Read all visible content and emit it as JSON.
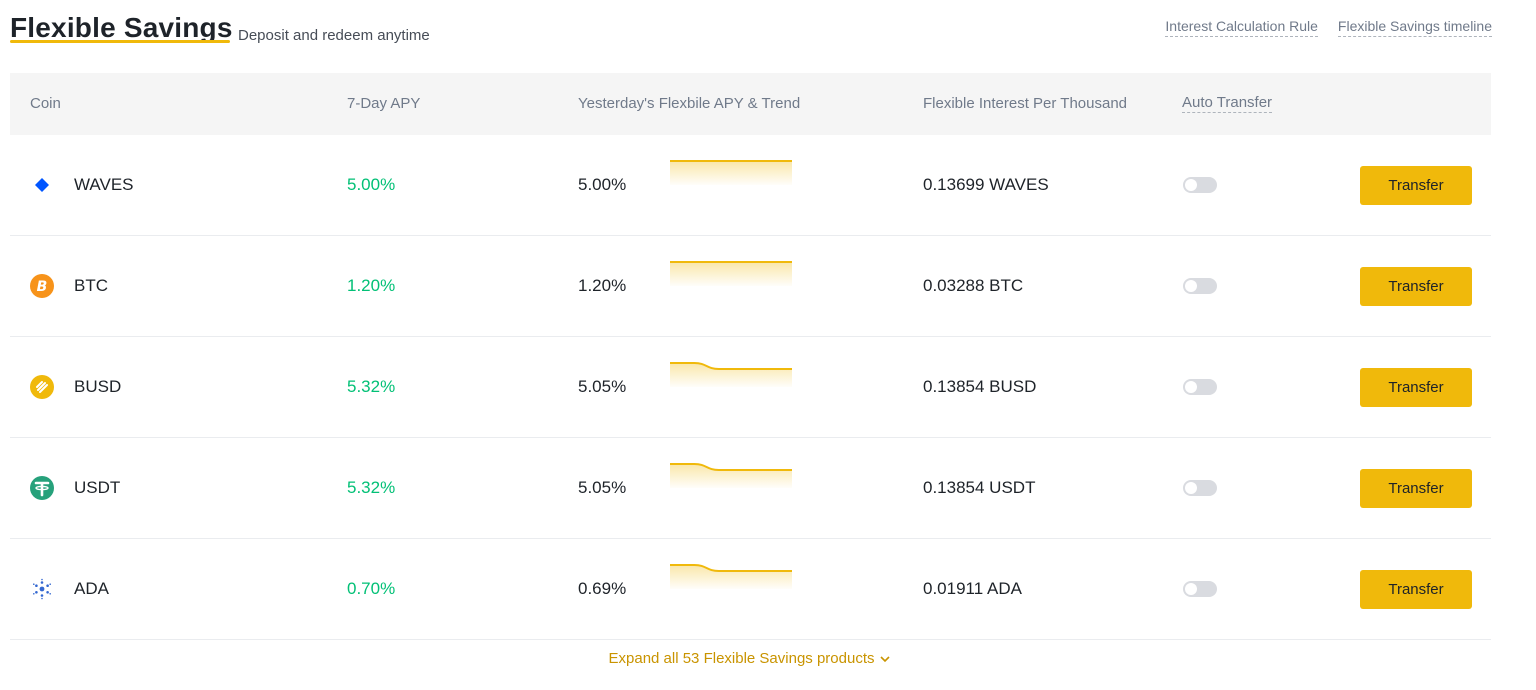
{
  "header": {
    "title": "Flexible Savings",
    "subtitle": "Deposit and redeem anytime",
    "links": [
      "Interest Calculation Rule",
      "Flexible Savings timeline"
    ]
  },
  "table": {
    "columns": {
      "coin": "Coin",
      "apy7": "7-Day APY",
      "trend": "Yesterday's Flexbile APY & Trend",
      "interest": "Flexible Interest Per Thousand",
      "auto": "Auto Transfer"
    },
    "rows": [
      {
        "coin": "WAVES",
        "icon": "waves-icon",
        "apy7": "5.00%",
        "yesterday": "5.00%",
        "trend": [
          5.0,
          5.0,
          5.0,
          5.0,
          5.0
        ],
        "interest": "0.13699 WAVES",
        "auto_transfer": false,
        "button": "Transfer"
      },
      {
        "coin": "BTC",
        "icon": "btc-icon",
        "apy7": "1.20%",
        "yesterday": "1.20%",
        "trend": [
          1.2,
          1.2,
          1.2,
          1.2,
          1.2
        ],
        "interest": "0.03288 BTC",
        "auto_transfer": false,
        "button": "Transfer"
      },
      {
        "coin": "BUSD",
        "icon": "busd-icon",
        "apy7": "5.32%",
        "yesterday": "5.05%",
        "trend": [
          5.4,
          5.4,
          5.05,
          5.05,
          5.05,
          5.05
        ],
        "interest": "0.13854 BUSD",
        "auto_transfer": false,
        "button": "Transfer"
      },
      {
        "coin": "USDT",
        "icon": "usdt-icon",
        "apy7": "5.32%",
        "yesterday": "5.05%",
        "trend": [
          5.4,
          5.4,
          5.05,
          5.05,
          5.05,
          5.05
        ],
        "interest": "0.13854 USDT",
        "auto_transfer": false,
        "button": "Transfer"
      },
      {
        "coin": "ADA",
        "icon": "ada-icon",
        "apy7": "0.70%",
        "yesterday": "0.69%",
        "trend": [
          0.7,
          0.7,
          0.69,
          0.69,
          0.69,
          0.69
        ],
        "interest": "0.01911 ADA",
        "auto_transfer": false,
        "button": "Transfer"
      }
    ]
  },
  "expand": {
    "label": "Expand all 53 Flexible Savings products",
    "icon": "chevron-down-icon"
  },
  "colors": {
    "accent": "#f0b90b",
    "positive": "#02c076",
    "link": "#c99400"
  }
}
